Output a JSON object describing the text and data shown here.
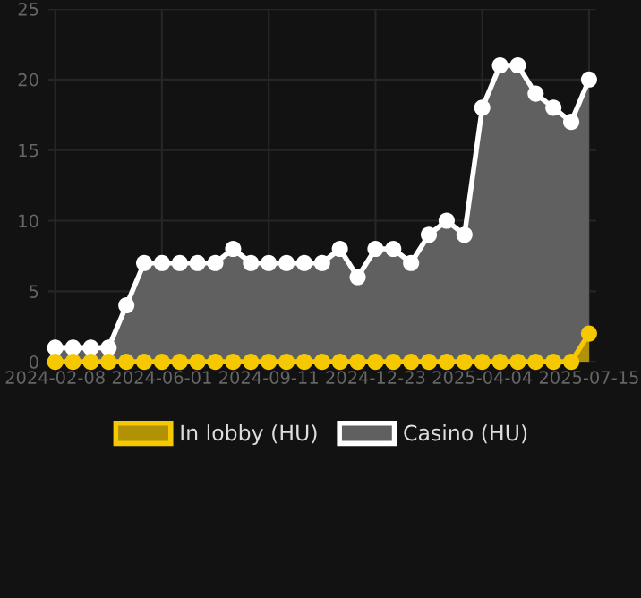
{
  "chart_data": {
    "type": "area",
    "categories": [
      "2024-02-08",
      null,
      null,
      null,
      null,
      null,
      "2024-06-01",
      null,
      null,
      null,
      null,
      null,
      "2024-09-11",
      null,
      null,
      null,
      null,
      null,
      "2024-12-23",
      null,
      null,
      null,
      null,
      null,
      "2025-04-04",
      null,
      null,
      null,
      null,
      null,
      "2025-07-15"
    ],
    "series": [
      {
        "name": "Casino (HU)",
        "color": "#ffffff",
        "values": [
          1,
          1,
          1,
          1,
          4,
          7,
          7,
          7,
          7,
          7,
          8,
          7,
          7,
          7,
          7,
          7,
          8,
          6,
          8,
          8,
          7,
          9,
          10,
          9,
          18,
          21,
          21,
          19,
          18,
          17,
          20
        ]
      },
      {
        "name": "In lobby (HU)",
        "color": "#f5c800",
        "values": [
          0,
          0,
          0,
          0,
          0,
          0,
          0,
          0,
          0,
          0,
          0,
          0,
          0,
          0,
          0,
          0,
          0,
          0,
          0,
          0,
          0,
          0,
          0,
          0,
          0,
          0,
          0,
          0,
          0,
          0,
          2
        ]
      }
    ],
    "ylim": [
      0,
      25
    ],
    "yticks": [
      0,
      5,
      10,
      15,
      20,
      25
    ],
    "grid": true,
    "legend": "bottom",
    "marker": "circle",
    "line_style": "solid"
  }
}
